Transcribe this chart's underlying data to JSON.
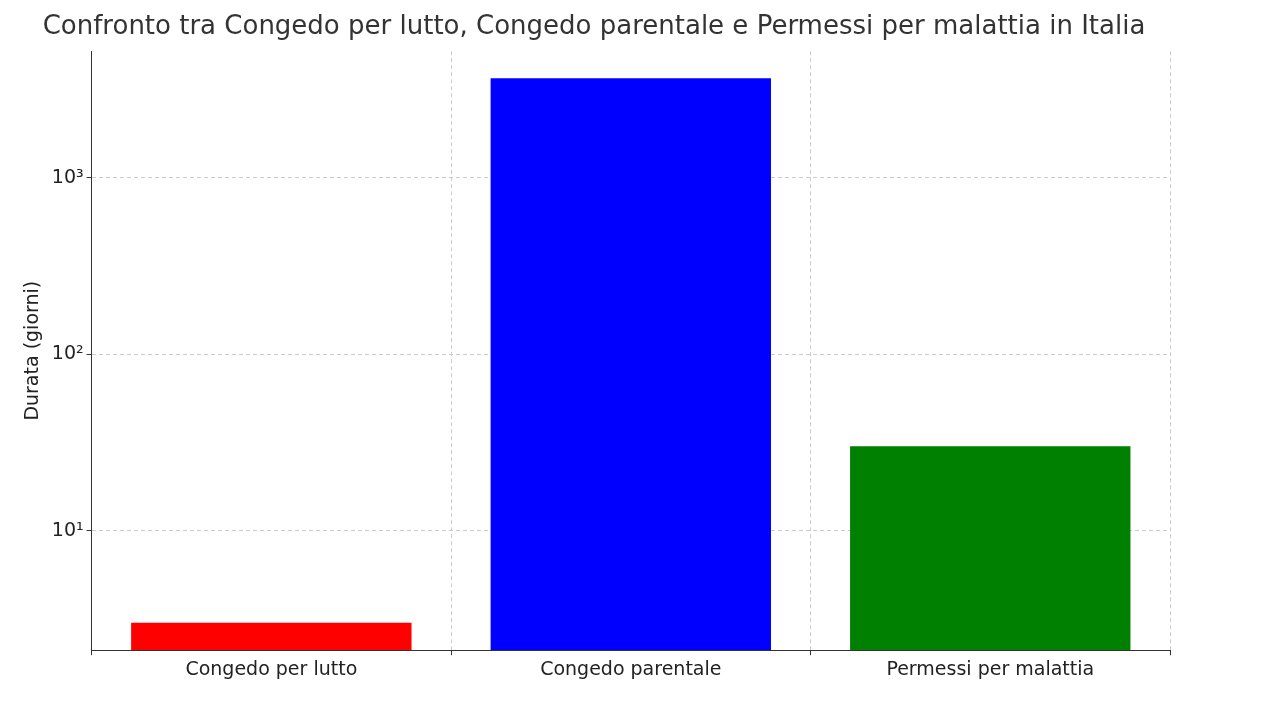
{
  "chart_data": {
    "type": "bar",
    "title": "Confronto tra Congedo per lutto, Congedo parentale e Permessi per malattia in Italia",
    "ylabel": "Durata (giorni)",
    "categories": [
      "Congedo per lutto",
      "Congedo parentale",
      "Permessi per malattia"
    ],
    "values": [
      3,
      3650,
      30
    ],
    "colors": [
      "#ff0000",
      "#0000ff",
      "#008000"
    ],
    "log": true,
    "ylim": [
      2.1,
      5200
    ],
    "yticks": [
      {
        "value": 10,
        "label": "10¹"
      },
      {
        "value": 100,
        "label": "10²"
      },
      {
        "value": 1000,
        "label": "10³"
      }
    ],
    "grid": true,
    "legend": false
  }
}
